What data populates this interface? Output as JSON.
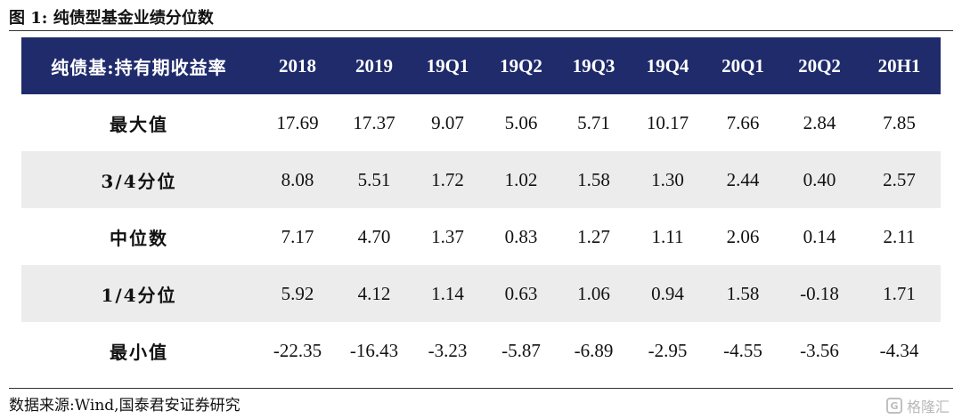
{
  "figure_title": "图 1:  纯债型基金业绩分位数",
  "table": {
    "columns": [
      "纯债基:持有期收益率",
      "2018",
      "2019",
      "19Q1",
      "19Q2",
      "19Q3",
      "19Q4",
      "20Q1",
      "20Q2",
      "20H1"
    ],
    "rows": [
      {
        "label": "最大值",
        "values": [
          "17.69",
          "17.37",
          "9.07",
          "5.06",
          "5.71",
          "10.17",
          "7.66",
          "2.84",
          "7.85"
        ]
      },
      {
        "label": "3/4分位",
        "values": [
          "8.08",
          "5.51",
          "1.72",
          "1.02",
          "1.58",
          "1.30",
          "2.44",
          "0.40",
          "2.57"
        ]
      },
      {
        "label": "中位数",
        "values": [
          "7.17",
          "4.70",
          "1.37",
          "0.83",
          "1.27",
          "1.11",
          "2.06",
          "0.14",
          "2.11"
        ]
      },
      {
        "label": "1/4分位",
        "values": [
          "5.92",
          "4.12",
          "1.14",
          "0.63",
          "1.06",
          "0.94",
          "1.58",
          "-0.18",
          "1.71"
        ]
      },
      {
        "label": "最小值",
        "values": [
          "-22.35",
          "-16.43",
          "-3.23",
          "-5.87",
          "-6.89",
          "-2.95",
          "-4.55",
          "-3.56",
          "-4.34"
        ]
      }
    ]
  },
  "source": "数据来源:Wind,国泰君安证券研究",
  "watermark": {
    "text": "格隆汇",
    "icon": "gelonghui-logo-icon"
  },
  "colors": {
    "header_bg": "#1f2b6b",
    "stripe_bg": "#ececec"
  }
}
